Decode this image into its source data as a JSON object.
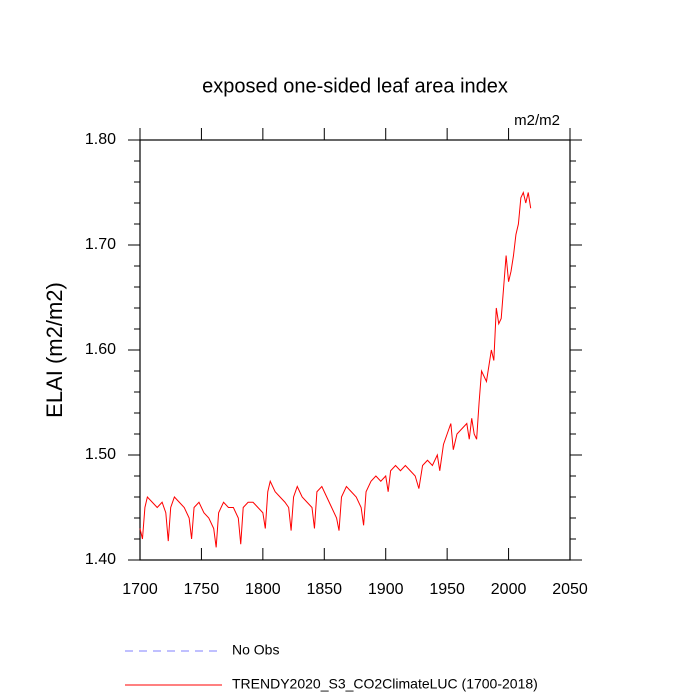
{
  "chart_data": {
    "type": "line",
    "title": "exposed one-sided leaf area index",
    "units": "m2/m2",
    "y_label": "ELAI  (m2/m2)",
    "x": [
      1700,
      1702,
      1704,
      1706,
      1710,
      1714,
      1718,
      1721,
      1723,
      1725,
      1728,
      1732,
      1736,
      1740,
      1742,
      1744,
      1748,
      1752,
      1756,
      1760,
      1762,
      1764,
      1768,
      1772,
      1776,
      1780,
      1782,
      1784,
      1788,
      1792,
      1796,
      1800,
      1802,
      1804,
      1806,
      1810,
      1814,
      1818,
      1821,
      1823,
      1825,
      1828,
      1832,
      1836,
      1840,
      1842,
      1844,
      1848,
      1852,
      1856,
      1860,
      1862,
      1864,
      1868,
      1872,
      1876,
      1880,
      1882,
      1884,
      1888,
      1892,
      1896,
      1900,
      1902,
      1904,
      1908,
      1912,
      1916,
      1920,
      1924,
      1927,
      1930,
      1934,
      1938,
      1942,
      1944,
      1947,
      1950,
      1953,
      1955,
      1958,
      1962,
      1966,
      1968,
      1970,
      1972,
      1974,
      1976,
      1978,
      1980,
      1982,
      1984,
      1986,
      1988,
      1990,
      1992,
      1994,
      1996,
      1998,
      2000,
      2002,
      2004,
      2006,
      2008,
      2010,
      2012,
      2014,
      2016,
      2018
    ],
    "series": [
      {
        "name": "TRENDY2020_S3_CO2ClimateLUC (1700-2018)",
        "color": "#ff0000",
        "values": [
          1.43,
          1.42,
          1.45,
          1.46,
          1.455,
          1.45,
          1.455,
          1.445,
          1.418,
          1.45,
          1.46,
          1.455,
          1.45,
          1.44,
          1.42,
          1.45,
          1.455,
          1.445,
          1.44,
          1.43,
          1.412,
          1.445,
          1.455,
          1.45,
          1.45,
          1.44,
          1.415,
          1.45,
          1.455,
          1.455,
          1.45,
          1.445,
          1.43,
          1.465,
          1.475,
          1.465,
          1.46,
          1.455,
          1.45,
          1.428,
          1.46,
          1.47,
          1.46,
          1.455,
          1.45,
          1.43,
          1.465,
          1.47,
          1.46,
          1.45,
          1.44,
          1.428,
          1.46,
          1.47,
          1.465,
          1.46,
          1.45,
          1.433,
          1.465,
          1.475,
          1.48,
          1.475,
          1.48,
          1.465,
          1.485,
          1.49,
          1.485,
          1.49,
          1.485,
          1.48,
          1.468,
          1.49,
          1.495,
          1.49,
          1.5,
          1.485,
          1.51,
          1.52,
          1.53,
          1.505,
          1.52,
          1.525,
          1.53,
          1.515,
          1.535,
          1.52,
          1.515,
          1.55,
          1.58,
          1.575,
          1.57,
          1.585,
          1.6,
          1.59,
          1.64,
          1.625,
          1.63,
          1.66,
          1.69,
          1.665,
          1.675,
          1.69,
          1.71,
          1.72,
          1.745,
          1.75,
          1.74,
          1.75,
          1.735
        ]
      }
    ],
    "reference_lines": [
      {
        "name": "No Obs",
        "color": "#8080ff",
        "dash": true
      }
    ],
    "xlim": [
      1700,
      2050
    ],
    "xticks": [
      1700,
      1750,
      1800,
      1850,
      1900,
      1950,
      2000,
      2050
    ],
    "ylim": [
      1.4,
      1.8
    ],
    "yticks": [
      {
        "value": 1.4,
        "label": "1.40"
      },
      {
        "value": 1.5,
        "label": "1.50"
      },
      {
        "value": 1.6,
        "label": "1.60"
      },
      {
        "value": 1.7,
        "label": "1.70"
      },
      {
        "value": 1.8,
        "label": "1.80"
      }
    ],
    "yminorticks": [
      1.42,
      1.44,
      1.46,
      1.48,
      1.52,
      1.54,
      1.56,
      1.58,
      1.62,
      1.64,
      1.66,
      1.68,
      1.72,
      1.74,
      1.76,
      1.78
    ]
  }
}
